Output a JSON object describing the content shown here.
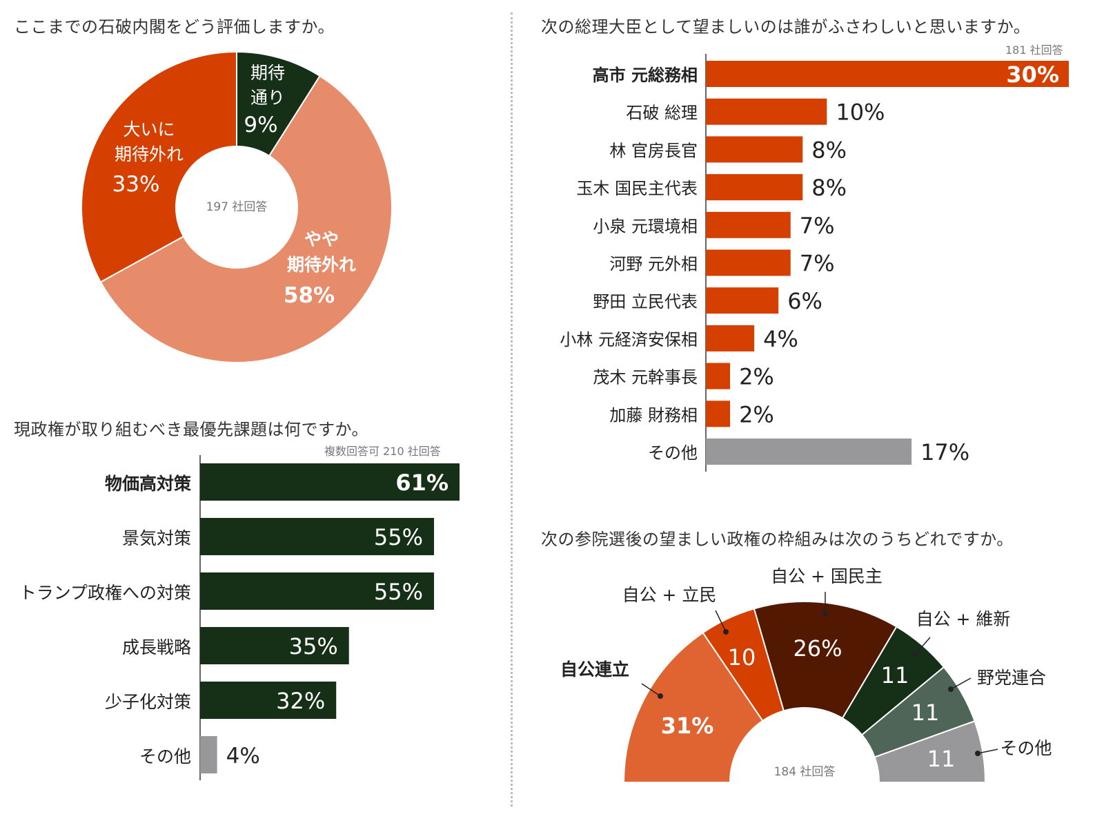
{
  "colors": {
    "orange": "#d54000",
    "salmon": "#e78c6a",
    "darkgreen": "#163018",
    "gray": "#98989b",
    "brown": "#521800",
    "slategreen": "#4e6558",
    "burnt": "#df6431"
  },
  "chart_data": [
    {
      "type": "pie",
      "title": "ここまでの石破内閣をどう評価しますか。",
      "note": "197 社回答",
      "slices": [
        {
          "label": "期待通り",
          "value": 9
        },
        {
          "label": "やや期待外れ",
          "value": 58
        },
        {
          "label": "大いに期待外れ",
          "value": 33
        }
      ],
      "value_labels": [
        "9%",
        "58%",
        "33%"
      ],
      "label_lines": [
        [
          "期待",
          "通り"
        ],
        [
          "やや",
          "期待外れ"
        ],
        [
          "大いに",
          "期待外れ"
        ]
      ]
    },
    {
      "type": "bar",
      "title": "現政権が取り組むべき最優先課題は何ですか。",
      "note": "複数回答可 210 社回答",
      "categories": [
        "物価高対策",
        "景気対策",
        "トランプ政権への対策",
        "成長戦略",
        "少子化対策",
        "その他"
      ],
      "values": [
        61,
        55,
        55,
        35,
        32,
        4
      ],
      "value_labels": [
        "61%",
        "55%",
        "55%",
        "35%",
        "32%",
        "4%"
      ]
    },
    {
      "type": "bar",
      "title": "次の総理大臣として望ましいのは誰がふさわしいと思いますか。",
      "note": "181 社回答",
      "categories": [
        "高市 元総務相",
        "石破 総理",
        "林 官房長官",
        "玉木 国民主代表",
        "小泉 元環境相",
        "河野 元外相",
        "野田 立民代表",
        "小林 元経済安保相",
        "茂木 元幹事長",
        "加藤 財務相",
        "その他"
      ],
      "values": [
        30,
        10,
        8,
        8,
        7,
        7,
        6,
        4,
        2,
        2,
        17
      ],
      "value_labels": [
        "30%",
        "10%",
        "8%",
        "8%",
        "7%",
        "7%",
        "6%",
        "4%",
        "2%",
        "2%",
        "17%"
      ]
    },
    {
      "type": "pie",
      "title": "次の参院選後の望ましい政権の枠組みは次のうちどれですか。",
      "note": "184 社回答",
      "slices": [
        {
          "label": "自公連立",
          "value": 31
        },
        {
          "label": "自公 + 立民",
          "value": 10
        },
        {
          "label": "自公 + 国民主",
          "value": 26
        },
        {
          "label": "自公 + 維新",
          "value": 11
        },
        {
          "label": "野党連合",
          "value": 11
        },
        {
          "label": "その他",
          "value": 11
        }
      ],
      "value_labels": [
        "31%",
        "10",
        "26%",
        "11",
        "11",
        "11"
      ]
    }
  ]
}
